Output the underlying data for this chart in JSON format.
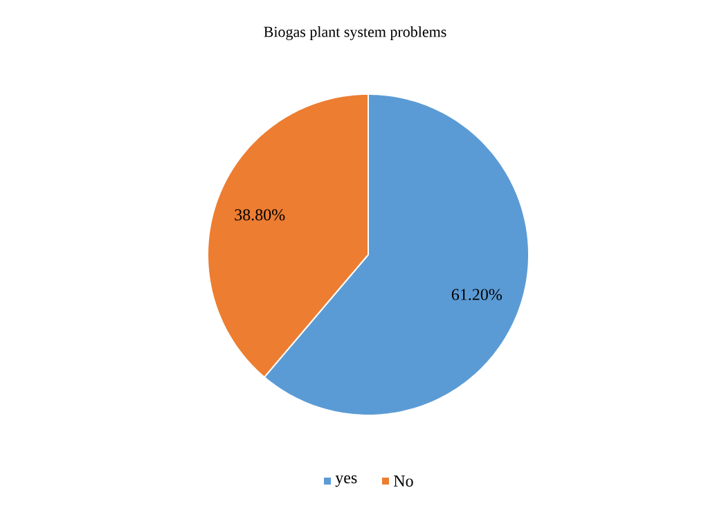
{
  "chart_data": {
    "type": "pie",
    "title": "Biogas plant system problems",
    "categories": [
      "yes",
      "No"
    ],
    "values": [
      61.2,
      38.8
    ],
    "colors": [
      "#5b9bd5",
      "#ed7d31"
    ],
    "value_labels": [
      "61.20%",
      "38.80%"
    ],
    "legend": "bottom"
  }
}
